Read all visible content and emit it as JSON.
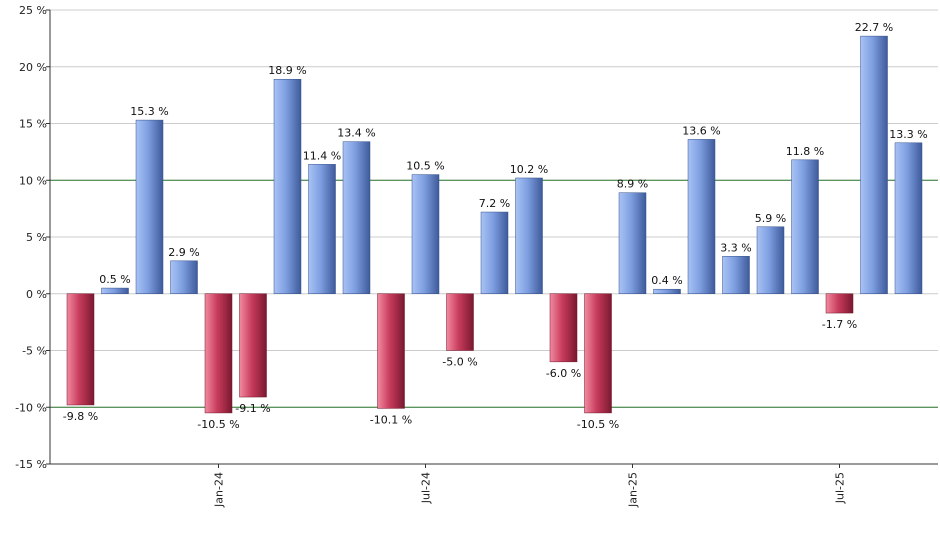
{
  "chart_data": {
    "type": "bar",
    "title": "",
    "xlabel": "",
    "ylabel": "",
    "ylim": [
      -15,
      25
    ],
    "yticks": [
      -15,
      -10,
      -5,
      0,
      5,
      10,
      15,
      20,
      25
    ],
    "ytick_suffix": " %",
    "value_suffix": " %",
    "reference_lines": [
      10,
      -10
    ],
    "x_tick_labels": [
      {
        "label": "Jan-24",
        "bar_index": 4
      },
      {
        "label": "Jul-24",
        "bar_index": 10
      },
      {
        "label": "Jan-25",
        "bar_index": 16
      },
      {
        "label": "Jul-25",
        "bar_index": 22
      }
    ],
    "values": [
      -9.8,
      0.5,
      15.3,
      2.9,
      -10.5,
      -9.1,
      18.9,
      11.4,
      13.4,
      -10.1,
      10.5,
      -5.0,
      7.2,
      10.2,
      -6.0,
      -10.5,
      8.9,
      0.4,
      13.6,
      3.3,
      5.9,
      11.8,
      -1.7,
      22.7,
      13.3
    ],
    "value_labels": [
      "-9.8 %",
      "0.5 %",
      "15.3 %",
      "2.9 %",
      "-10.5 %",
      "-9.1 %",
      "18.9 %",
      "11.4 %",
      "13.4 %",
      "-10.1 %",
      "10.5 %",
      "-5.0 %",
      "7.2 %",
      "10.2 %",
      "-6.0 %",
      "-10.5 %",
      "8.9 %",
      "0.4 %",
      "13.6 %",
      "3.3 %",
      "5.9 %",
      "11.8 %",
      "-1.7 %",
      "22.7 %",
      "13.3 %"
    ],
    "grid": true,
    "colors": {
      "positive": "#7d9ee0",
      "negative": "#c83c5c",
      "reference_line": "#2e7d32",
      "grid": "#cccccc",
      "axis": "#333333"
    }
  }
}
